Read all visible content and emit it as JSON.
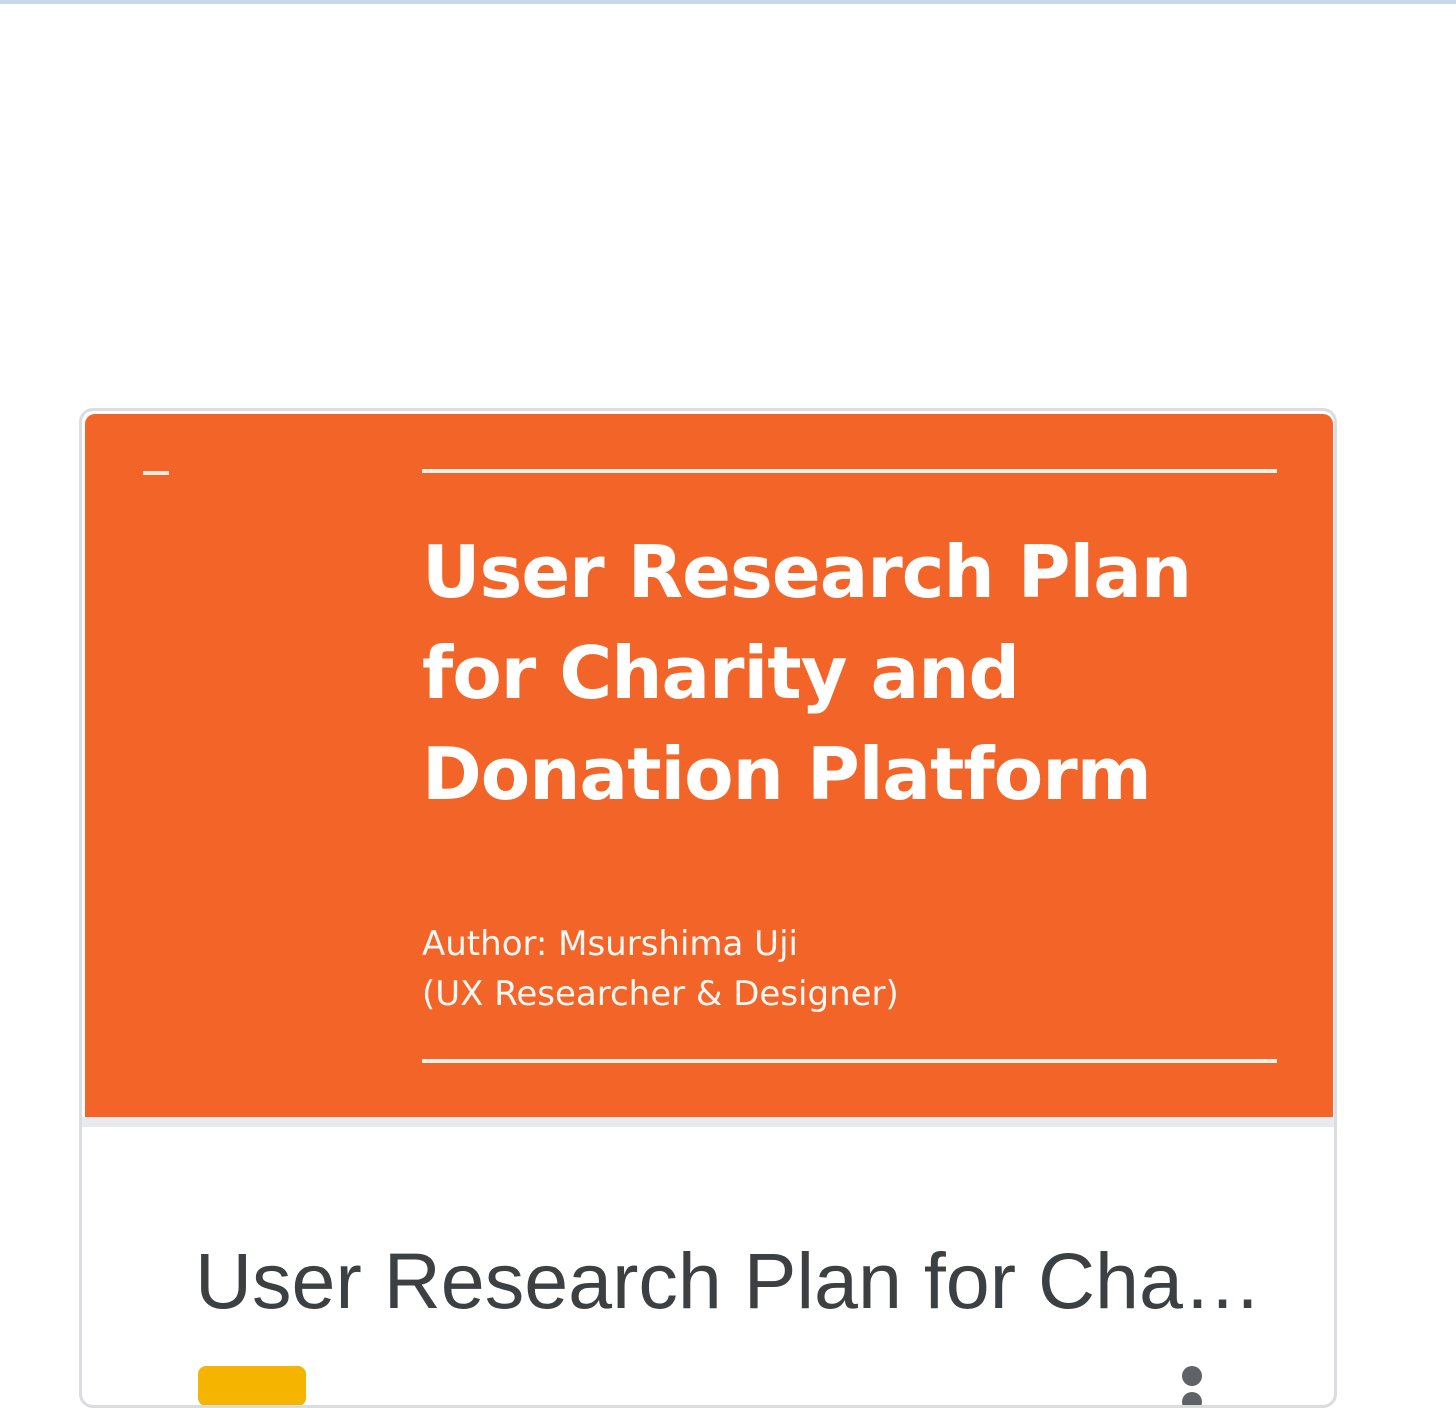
{
  "card": {
    "thumbnail": {
      "title_lines": [
        "User Research Plan",
        "for Charity and",
        "Donation Platform"
      ],
      "author_lines": [
        "Author: Msurshima Uji",
        "(UX Researcher & Designer)"
      ],
      "background_color": "#f26428"
    },
    "title": "User Research Plan for Charity and Donation Platform",
    "file_type_icon": "slides-icon",
    "file_type_color": "#f4b400",
    "menu_icon": "more-vert-icon"
  }
}
